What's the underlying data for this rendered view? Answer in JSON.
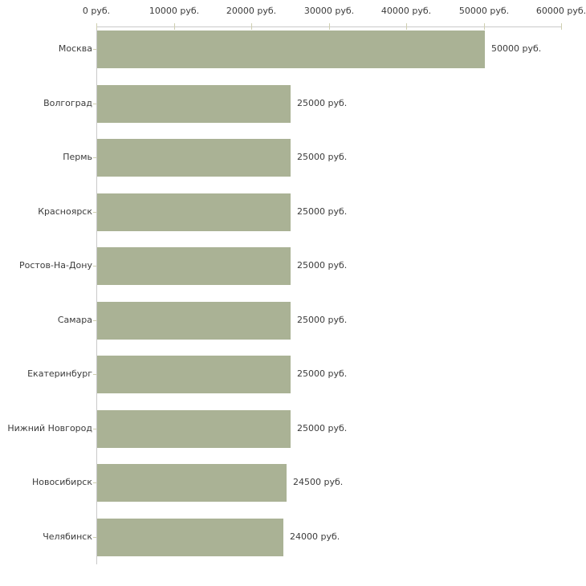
{
  "chart_data": {
    "type": "bar",
    "orientation": "horizontal",
    "title": "",
    "categories": [
      "Москва",
      "Волгоград",
      "Пермь",
      "Красноярск",
      "Ростов-На-Дону",
      "Самара",
      "Екатеринбург",
      "Нижний Новгород",
      "Новосибирск",
      "Челябинск"
    ],
    "values": [
      50000,
      25000,
      25000,
      25000,
      25000,
      25000,
      25000,
      25000,
      24500,
      24000
    ],
    "bar_labels": [
      "50000 руб.",
      "25000 руб.",
      "25000 руб.",
      "25000 руб.",
      "25000 руб.",
      "25000 руб.",
      "25000 руб.",
      "25000 руб.",
      "24500 руб.",
      "24000 руб."
    ],
    "unit": "руб.",
    "x_axis": {
      "position": "top",
      "min": 0,
      "max": 60000,
      "tick_values": [
        0,
        10000,
        20000,
        30000,
        40000,
        50000,
        60000
      ],
      "tick_labels": [
        "0 руб.",
        "10000 руб.",
        "20000 руб.",
        "30000 руб.",
        "40000 руб.",
        "50000 руб.",
        "60000 руб."
      ]
    },
    "grid": false,
    "legend": false,
    "colors": {
      "bar": "#aab295",
      "axis_line": "#c9c9c9",
      "tick": "#cfcfb0",
      "text": "#3b3b3b",
      "background": "#ffffff"
    }
  }
}
